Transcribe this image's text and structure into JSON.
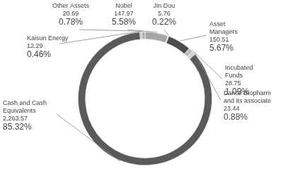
{
  "chart_data": {
    "type": "doughnut",
    "categories": [
      "Nobel",
      "Jin Dou",
      "Asset Managers",
      "Incubated Funds",
      "Dance Biopharm and its associate",
      "Cash and Cash Equivalents",
      "Kaisun Energy",
      "Other Assets"
    ],
    "values": [
      147.97,
      5.76,
      150.51,
      28.75,
      23.44,
      2263.57,
      12.29,
      20.69
    ],
    "value_labels": [
      "147.97",
      "5.76",
      "150.51",
      "28.75",
      "23.44",
      "2,263.57",
      "12.29",
      "20.69"
    ],
    "percentages": [
      {
        "value": 5.58,
        "label": "5.58%"
      },
      {
        "value": 0.22,
        "label": "0.22%"
      },
      {
        "value": 5.67,
        "label": "5.67%"
      },
      {
        "value": 1.09,
        "label": "1.09%"
      },
      {
        "value": 0.88,
        "label": "0.88%"
      },
      {
        "value": 85.32,
        "label": "85.32%"
      },
      {
        "value": 0.46,
        "label": "0.46%"
      },
      {
        "value": 0.78,
        "label": "0.78%"
      }
    ],
    "colors": [
      "#a6a6a6",
      "#c8c8c8",
      "#4d4d4d",
      "#bdbdbd",
      "#d0d0d0",
      "#5a5a5a",
      "#c0c0c0",
      "#b0b0b0"
    ],
    "data_labels": true
  }
}
